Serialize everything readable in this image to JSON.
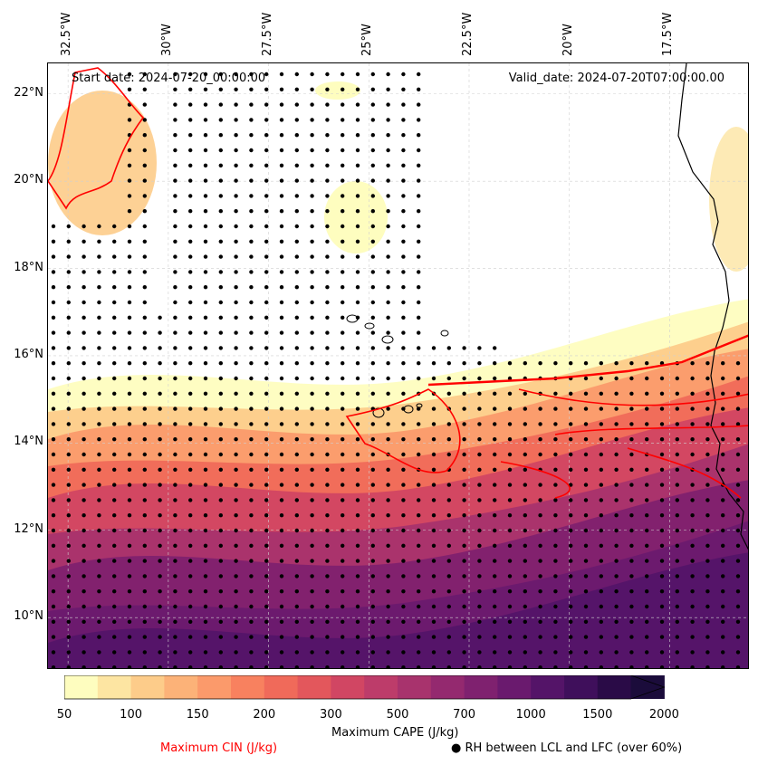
{
  "map": {
    "start_date": "Start date: 2024-07-20_00:00:00",
    "valid_date": "Valid_date: 2024-07-20T07:00:00.00",
    "lon_labels": [
      "32.5°W",
      "30°W",
      "27.5°W",
      "25°W",
      "22.5°W",
      "20°W",
      "17.5°W"
    ],
    "lat_labels": [
      "22°N",
      "20°N",
      "18°N",
      "16°N",
      "14°N",
      "12°N",
      "10°N"
    ],
    "extent": {
      "lon_min": -33.0,
      "lon_max": -15.5,
      "lat_min": 8.8,
      "lat_max": 22.7
    },
    "colors": {
      "coastline": "#000000",
      "cin_contour": "#ff0000",
      "stipple": "#000000",
      "gridline": "#d0d0d0"
    }
  },
  "colorbar": {
    "label": "Maximum CAPE (J/kg)",
    "levels": [
      "50",
      "100",
      "150",
      "200",
      "300",
      "500",
      "700",
      "1000",
      "1500",
      "2000"
    ],
    "colors": [
      "#fefdbf",
      "#fde5a2",
      "#fdcc8a",
      "#fcb278",
      "#fb9a6b",
      "#f8815f",
      "#f06a5a",
      "#e3575c",
      "#d14663",
      "#bd3c6a",
      "#a8336d",
      "#94296f",
      "#7f216f",
      "#6a1a6e",
      "#541468",
      "#3f0f5b",
      "#2a0b47",
      "#1b0c3b"
    ]
  },
  "legend": {
    "cin_label": "Maximum CIN (J/kg)",
    "cin_color": "#ff0000",
    "rh_label": "RH between LCL and LFC (over 60%)",
    "rh_marker": "●"
  }
}
